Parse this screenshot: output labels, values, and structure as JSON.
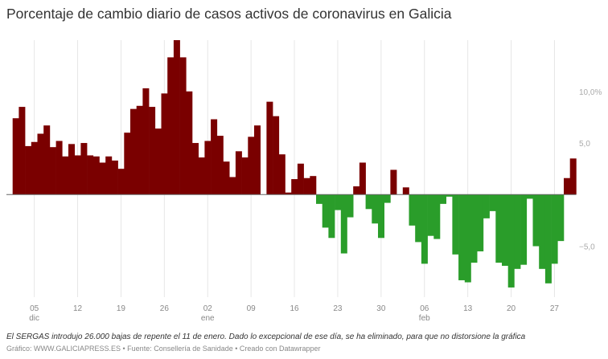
{
  "title": "Porcentaje de cambio diario de casos activos de coronavirus en Galicia",
  "note": "El SERGAS introdujo 26.000 bajas de repente el 11 de enero. Dado lo excepcional de ese día, se ha eliminado, para que no distorsione la gráfica",
  "credit": "Gráfico: WWW.GALICIAPRESS.ES • Fuente: Consellería de Sanidade • Creado con Datawrapper",
  "chart_data": {
    "type": "bar",
    "title": "Porcentaje de cambio diario de casos activos de coronavirus en Galicia",
    "xlabel": "",
    "ylabel": "",
    "ylim": [
      -9.5,
      15
    ],
    "grid": "vertical",
    "colors": {
      "positive": "#7a0000",
      "negative": "#2a9d2a",
      "baseline": "#666666"
    },
    "categories": [
      "02 dic",
      "03 dic",
      "04 dic",
      "05 dic",
      "06 dic",
      "07 dic",
      "08 dic",
      "09 dic",
      "10 dic",
      "11 dic",
      "12 dic",
      "13 dic",
      "14 dic",
      "15 dic",
      "16 dic",
      "17 dic",
      "18 dic",
      "19 dic",
      "20 dic",
      "21 dic",
      "22 dic",
      "23 dic",
      "24 dic",
      "25 dic",
      "26 dic",
      "27 dic",
      "28 dic",
      "29 dic",
      "30 dic",
      "31 dic",
      "01 ene",
      "02 ene",
      "03 ene",
      "04 ene",
      "05 ene",
      "06 ene",
      "07 ene",
      "08 ene",
      "09 ene",
      "10 ene",
      "11 ene",
      "12 ene",
      "13 ene",
      "14 ene",
      "15 ene",
      "16 ene",
      "17 ene",
      "18 ene",
      "19 ene",
      "20 ene",
      "21 ene",
      "22 ene",
      "23 ene",
      "24 ene",
      "25 ene",
      "26 ene",
      "27 ene",
      "28 ene",
      "29 ene",
      "30 ene",
      "31 ene",
      "01 feb",
      "02 feb",
      "03 feb",
      "04 feb",
      "05 feb",
      "06 feb",
      "07 feb",
      "08 feb",
      "09 feb",
      "10 feb",
      "11 feb",
      "12 feb",
      "13 feb",
      "14 feb",
      "15 feb",
      "16 feb",
      "17 feb",
      "18 feb",
      "19 feb",
      "20 feb",
      "21 feb",
      "22 feb",
      "23 feb",
      "24 feb",
      "25 feb",
      "26 feb",
      "27 feb",
      "28 feb",
      "01 mar",
      "02 mar"
    ],
    "values": [
      7.4,
      8.5,
      4.7,
      5.1,
      5.9,
      6.7,
      4.6,
      5.2,
      3.7,
      4.9,
      3.8,
      5.0,
      3.8,
      3.7,
      3.1,
      3.7,
      3.3,
      2.5,
      6.0,
      8.3,
      8.6,
      10.3,
      8.5,
      6.4,
      9.8,
      13.3,
      15.0,
      13.3,
      10.0,
      5.0,
      3.6,
      5.2,
      7.3,
      5.7,
      3.2,
      1.7,
      4.2,
      3.6,
      5.6,
      6.7,
      null,
      9.0,
      7.6,
      3.9,
      0.2,
      1.5,
      3.0,
      1.6,
      1.8,
      -0.9,
      -3.2,
      -4.2,
      -1.5,
      -5.7,
      -2.2,
      0.8,
      3.1,
      -1.4,
      -2.8,
      -4.2,
      -0.8,
      2.4,
      0,
      0.7,
      -3.0,
      -4.6,
      -6.7,
      -4.0,
      -4.3,
      -0.9,
      -0.2,
      -5.8,
      -8.3,
      -8.5,
      -6.6,
      -5.5,
      -2.3,
      -1.6,
      -6.6,
      -6.9,
      -9.0,
      -7.2,
      -6.8,
      -0.4,
      -5.0,
      -7.2,
      -8.6,
      -6.7,
      -4.5,
      1.6,
      3.5
    ],
    "x_ticks": [
      {
        "category": "05 dic",
        "day": "05",
        "month": "dic"
      },
      {
        "category": "12 dic",
        "day": "12",
        "month": ""
      },
      {
        "category": "19 dic",
        "day": "19",
        "month": ""
      },
      {
        "category": "26 dic",
        "day": "26",
        "month": ""
      },
      {
        "category": "02 ene",
        "day": "02",
        "month": "ene"
      },
      {
        "category": "09 ene",
        "day": "09",
        "month": ""
      },
      {
        "category": "16 ene",
        "day": "16",
        "month": ""
      },
      {
        "category": "23 ene",
        "day": "23",
        "month": ""
      },
      {
        "category": "30 ene",
        "day": "30",
        "month": ""
      },
      {
        "category": "06 feb",
        "day": "06",
        "month": "feb"
      },
      {
        "category": "13 feb",
        "day": "13",
        "month": ""
      },
      {
        "category": "20 feb",
        "day": "20",
        "month": ""
      },
      {
        "category": "27 feb",
        "day": "27",
        "month": ""
      }
    ],
    "y_ticks": [
      {
        "value": 10,
        "label": "10,0%"
      },
      {
        "value": 5,
        "label": "5,0"
      },
      {
        "value": -5,
        "label": "−5,0"
      }
    ]
  }
}
